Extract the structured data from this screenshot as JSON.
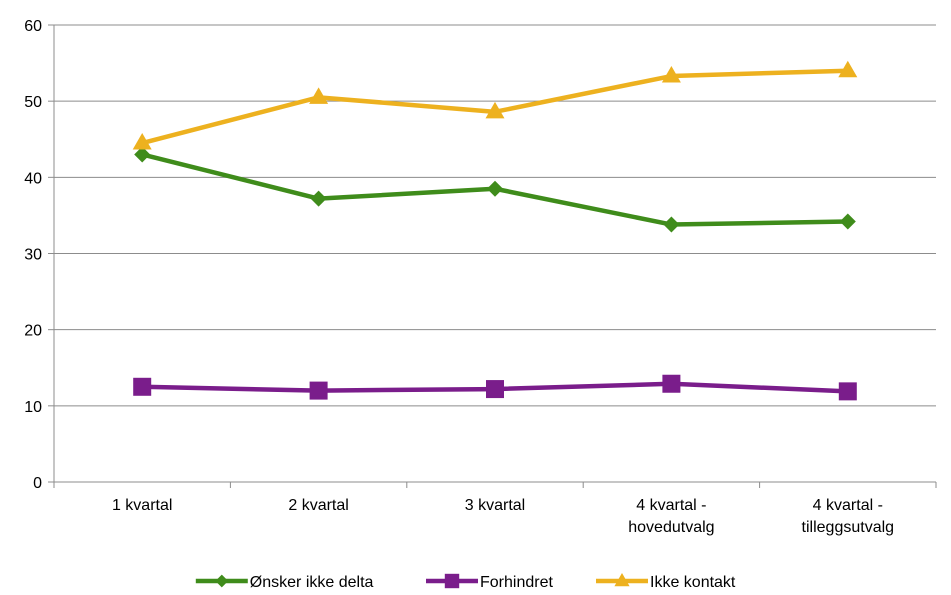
{
  "chart_data": {
    "type": "line",
    "title": "",
    "xlabel": "",
    "ylabel": "",
    "categories": [
      [
        "1 kvartal"
      ],
      [
        "2 kvartal"
      ],
      [
        "3 kvartal"
      ],
      [
        "4 kvartal -",
        "hovedutvalg"
      ],
      [
        "4 kvartal -",
        "tilleggsutvalg"
      ]
    ],
    "ylim": [
      0,
      60
    ],
    "yticks": [
      0,
      10,
      20,
      30,
      40,
      50,
      60
    ],
    "grid": true,
    "legend_position": "bottom",
    "series": [
      {
        "name": "Ønsker ikke delta",
        "marker": "diamond",
        "color": "#3F8C1B",
        "values": [
          43.0,
          37.2,
          38.5,
          33.8,
          34.2
        ]
      },
      {
        "name": "Forhindret",
        "marker": "square",
        "color": "#7A1D8B",
        "values": [
          12.5,
          12.0,
          12.2,
          12.9,
          11.9
        ]
      },
      {
        "name": "Ikke kontakt",
        "marker": "triangle",
        "color": "#EDB11F",
        "values": [
          44.5,
          50.5,
          48.6,
          53.3,
          54.0
        ]
      }
    ]
  }
}
